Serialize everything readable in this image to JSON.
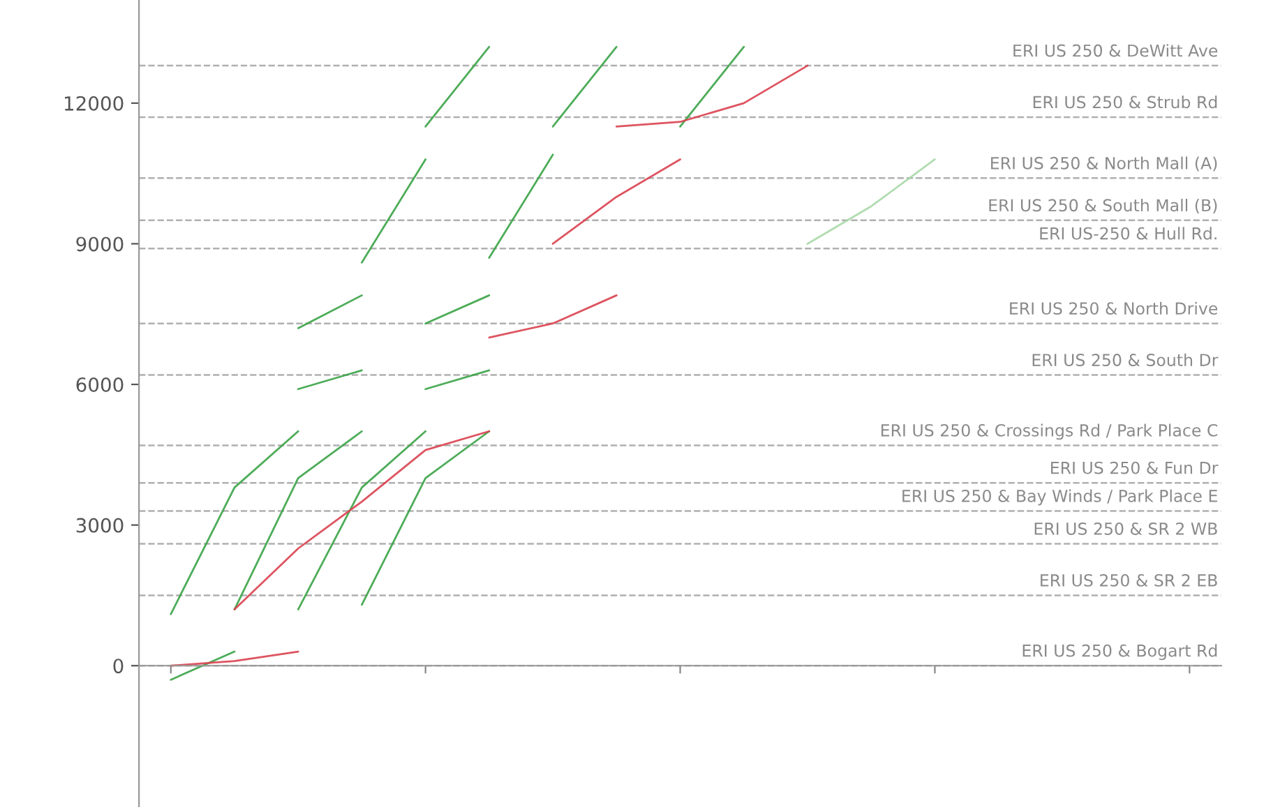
{
  "chart_data": {
    "type": "line",
    "categories": [
      null,
      null,
      null,
      null,
      null,
      null,
      null,
      null,
      null,
      null,
      null,
      null,
      null,
      null,
      null,
      null,
      null
    ],
    "ylim": [
      -3000,
      14200
    ],
    "yticks": [
      0,
      3000,
      6000,
      9000,
      12000
    ],
    "grid": false,
    "legend": false,
    "marker": "none",
    "line_style": "solid",
    "series": [
      {
        "color": "#3aa346",
        "values": [
          1100,
          3800,
          5000,
          null,
          null,
          null,
          null,
          null,
          null,
          null,
          null,
          null,
          null,
          null,
          null,
          null,
          null
        ]
      },
      {
        "color": "#3aa346",
        "values": [
          null,
          1200,
          4000,
          5000,
          null,
          null,
          null,
          null,
          null,
          null,
          null,
          null,
          null,
          null,
          null,
          null,
          null
        ]
      },
      {
        "color": "#3aa346",
        "values": [
          null,
          null,
          1200,
          3800,
          5000,
          null,
          null,
          null,
          null,
          null,
          null,
          null,
          null,
          null,
          null,
          null,
          null
        ]
      },
      {
        "color": "#3aa346",
        "values": [
          null,
          null,
          null,
          1300,
          4000,
          5000,
          null,
          null,
          null,
          null,
          null,
          null,
          null,
          null,
          null,
          null,
          null
        ]
      },
      {
        "color": "#d9414f",
        "values": [
          null,
          1200,
          2500,
          3500,
          4600,
          5000,
          null,
          null,
          null,
          null,
          null,
          null,
          null,
          null,
          null,
          null,
          null
        ]
      },
      {
        "color": "#3aa346",
        "values": [
          null,
          null,
          5900,
          6300,
          null,
          null,
          null,
          null,
          null,
          null,
          null,
          null,
          null,
          null,
          null,
          null,
          null
        ]
      },
      {
        "color": "#3aa346",
        "values": [
          null,
          null,
          null,
          null,
          5900,
          6300,
          null,
          null,
          null,
          null,
          null,
          null,
          null,
          null,
          null,
          null,
          null
        ]
      },
      {
        "color": "#3aa346",
        "values": [
          null,
          null,
          7200,
          7900,
          null,
          null,
          null,
          null,
          null,
          null,
          null,
          null,
          null,
          null,
          null,
          null,
          null
        ]
      },
      {
        "color": "#3aa346",
        "values": [
          null,
          null,
          null,
          null,
          7300,
          7900,
          null,
          null,
          null,
          null,
          null,
          null,
          null,
          null,
          null,
          null,
          null
        ]
      },
      {
        "color": "#d9414f",
        "values": [
          null,
          null,
          null,
          null,
          null,
          7000,
          7300,
          7900,
          null,
          null,
          null,
          null,
          null,
          null,
          null,
          null,
          null
        ]
      },
      {
        "color": "#3aa346",
        "values": [
          null,
          null,
          null,
          8600,
          10800,
          null,
          null,
          null,
          null,
          null,
          null,
          null,
          null,
          null,
          null,
          null,
          null
        ]
      },
      {
        "color": "#3aa346",
        "values": [
          null,
          null,
          null,
          null,
          null,
          8700,
          10900,
          null,
          null,
          null,
          null,
          null,
          null,
          null,
          null,
          null,
          null
        ]
      },
      {
        "color": "#d9414f",
        "values": [
          null,
          null,
          null,
          null,
          null,
          null,
          9000,
          10000,
          10800,
          null,
          null,
          null,
          null,
          null,
          null,
          null,
          null
        ]
      },
      {
        "color": "#a8d8a8",
        "values": [
          null,
          null,
          null,
          null,
          null,
          null,
          null,
          null,
          null,
          null,
          9000,
          9800,
          10800,
          null,
          null,
          null,
          null
        ]
      },
      {
        "color": "#3aa346",
        "values": [
          null,
          null,
          null,
          null,
          11500,
          13200,
          null,
          null,
          null,
          null,
          null,
          null,
          null,
          null,
          null,
          null,
          null
        ]
      },
      {
        "color": "#3aa346",
        "values": [
          null,
          null,
          null,
          null,
          null,
          null,
          11500,
          13200,
          null,
          null,
          null,
          null,
          null,
          null,
          null,
          null,
          null
        ]
      },
      {
        "color": "#3aa346",
        "values": [
          null,
          null,
          null,
          null,
          null,
          null,
          null,
          null,
          11500,
          13200,
          null,
          null,
          null,
          null,
          null,
          null,
          null
        ]
      },
      {
        "color": "#d9414f",
        "values": [
          null,
          null,
          null,
          null,
          null,
          null,
          null,
          11500,
          11600,
          12000,
          12800,
          null,
          null,
          null,
          null,
          null,
          null
        ]
      },
      {
        "color": "#3aa346",
        "values": [
          -300,
          300,
          null,
          null,
          null,
          null,
          null,
          null,
          null,
          null,
          null,
          null,
          null,
          null,
          null,
          null,
          null
        ]
      },
      {
        "color": "#d9414f",
        "values": [
          0,
          100,
          300,
          null,
          null,
          null,
          null,
          null,
          null,
          null,
          null,
          null,
          null,
          null,
          null,
          null,
          null
        ]
      }
    ],
    "ref_lines": [
      {
        "axis": "y",
        "value": 12800,
        "label": "ERI US 250 & DeWitt Ave",
        "color": "#b0b0b0",
        "line_style": "dashed"
      },
      {
        "axis": "y",
        "value": 11700,
        "label": "ERI US 250 & Strub Rd",
        "color": "#b0b0b0",
        "line_style": "dashed"
      },
      {
        "axis": "y",
        "value": 10400,
        "label": "ERI US 250 & North Mall (A)",
        "color": "#b0b0b0",
        "line_style": "dashed"
      },
      {
        "axis": "y",
        "value": 9500,
        "label": "ERI US 250 & South Mall (B)",
        "color": "#b0b0b0",
        "line_style": "dashed"
      },
      {
        "axis": "y",
        "value": 8900,
        "label": "ERI US-250 & Hull Rd.",
        "color": "#b0b0b0",
        "line_style": "dashed"
      },
      {
        "axis": "y",
        "value": 7300,
        "label": "ERI US 250 & North Drive",
        "color": "#b0b0b0",
        "line_style": "dashed"
      },
      {
        "axis": "y",
        "value": 6200,
        "label": "ERI US 250 & South Dr",
        "color": "#b0b0b0",
        "line_style": "dashed"
      },
      {
        "axis": "y",
        "value": 4700,
        "label": "ERI US 250 & Crossings Rd / Park Place C",
        "color": "#b0b0b0",
        "line_style": "dashed"
      },
      {
        "axis": "y",
        "value": 3900,
        "label": "ERI US 250 & Fun Dr",
        "color": "#b0b0b0",
        "line_style": "dashed"
      },
      {
        "axis": "y",
        "value": 3300,
        "label": "ERI US 250 & Bay Winds / Park Place E",
        "color": "#b0b0b0",
        "line_style": "dashed"
      },
      {
        "axis": "y",
        "value": 2600,
        "label": "ERI US 250 & SR 2 WB",
        "color": "#b0b0b0",
        "line_style": "dashed"
      },
      {
        "axis": "y",
        "value": 1500,
        "label": "ERI US 250 & SR 2 EB",
        "color": "#b0b0b0",
        "line_style": "dashed"
      },
      {
        "axis": "y",
        "value": 0,
        "label": "ERI US 250 & Bogart Rd",
        "color": "#b0b0b0",
        "line_style": "dashed"
      }
    ]
  }
}
